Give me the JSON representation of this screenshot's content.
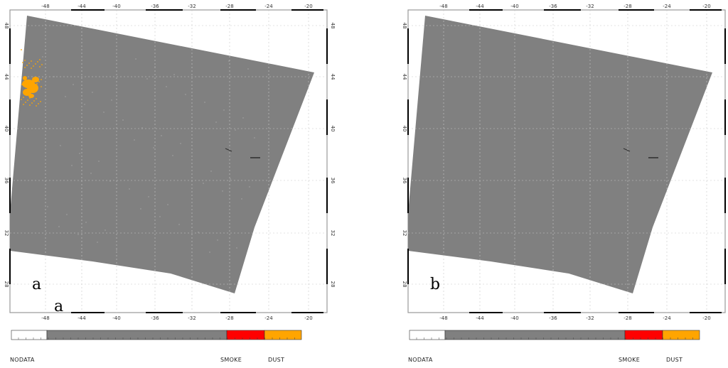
{
  "panels": [
    {
      "id": "a",
      "letter": "a",
      "extra_letter": "a",
      "has_dust_plume": true
    },
    {
      "id": "b",
      "letter": "b",
      "has_dust_plume": false
    }
  ],
  "axes": {
    "lon_ticks": [
      "-48",
      "-44",
      "-40",
      "-36",
      "-32",
      "-28",
      "-24",
      "-20"
    ],
    "lat_ticks": [
      "48",
      "44",
      "40",
      "36",
      "32",
      "28"
    ]
  },
  "legend": {
    "labels": [
      "NODATA",
      "SMOKE",
      "DUST"
    ],
    "colors": {
      "nodata": "#ffffff",
      "clear": "#808080",
      "smoke": "#ff0000",
      "dust": "#ffa500"
    }
  },
  "colors": {
    "swath": "#808080",
    "grid": "#c8c8c8",
    "frame": "#999999",
    "dust": "#ffa500"
  }
}
